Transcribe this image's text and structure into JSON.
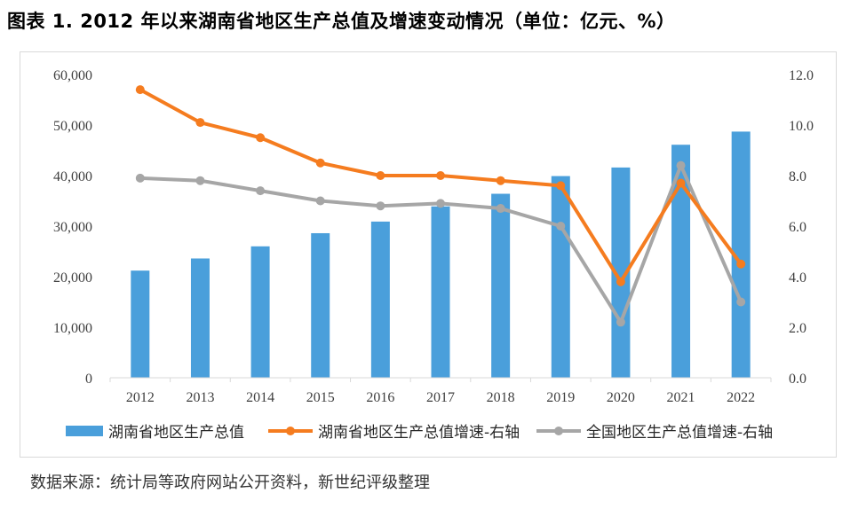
{
  "title": "图表 1. 2012 年以来湖南省地区生产总值及增速变动情况（单位：亿元、%）",
  "source": "数据来源：统计局等政府网站公开资料，新世纪评级整理",
  "colors": {
    "bar": "#4a9fdb",
    "hunan_line": "#f57c1f",
    "national_line": "#a6a6a6",
    "axis": "#d9d9d9",
    "text": "#404040"
  },
  "chart_data": {
    "type": "bar+line",
    "categories": [
      "2012",
      "2013",
      "2014",
      "2015",
      "2016",
      "2017",
      "2018",
      "2019",
      "2020",
      "2021",
      "2022"
    ],
    "left_axis": {
      "ylim": [
        0,
        60000
      ],
      "ticks": [
        0,
        10000,
        20000,
        30000,
        40000,
        50000,
        60000
      ],
      "tick_labels": [
        "0",
        "10,000",
        "20,000",
        "30,000",
        "40,000",
        "50,000",
        "60,000"
      ]
    },
    "right_axis": {
      "ylim": [
        0,
        12
      ],
      "ticks": [
        0,
        2,
        4,
        6,
        8,
        10,
        12
      ],
      "tick_labels": [
        "0.0",
        "2.0",
        "4.0",
        "6.0",
        "8.0",
        "10.0",
        "12.0"
      ]
    },
    "series": [
      {
        "name": "湖南省地区生产总值",
        "type": "bar",
        "axis": "left",
        "values": [
          21200,
          23600,
          26000,
          28600,
          30900,
          33900,
          36400,
          39900,
          41600,
          46100,
          48700
        ]
      },
      {
        "name": "湖南省地区生产总值增速-右轴",
        "type": "line",
        "axis": "right",
        "values": [
          11.4,
          10.1,
          9.5,
          8.5,
          8.0,
          8.0,
          7.8,
          7.6,
          3.8,
          7.7,
          4.5
        ]
      },
      {
        "name": "全国地区生产总值增速-右轴",
        "type": "line",
        "axis": "right",
        "values": [
          7.9,
          7.8,
          7.4,
          7.0,
          6.8,
          6.9,
          6.7,
          6.0,
          2.2,
          8.4,
          3.0
        ]
      }
    ],
    "legend_position": "bottom"
  }
}
